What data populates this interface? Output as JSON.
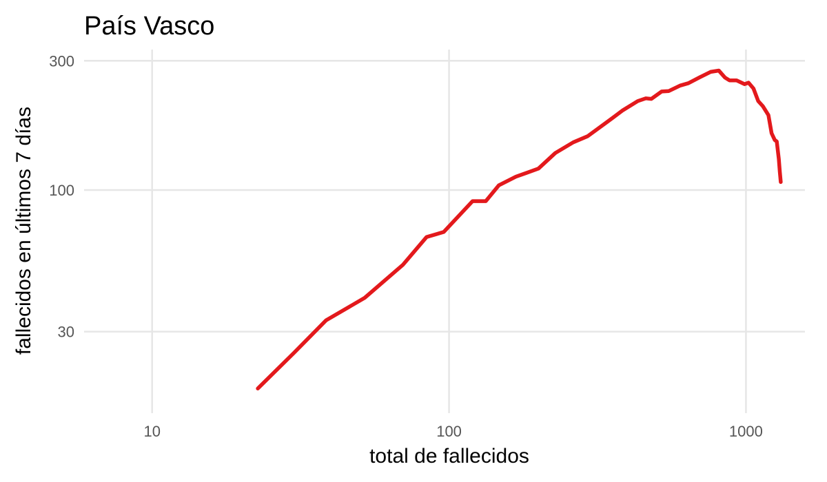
{
  "chart_data": {
    "type": "line",
    "title": "País Vasco",
    "xlabel": "total de fallecidos",
    "ylabel": "fallecidos en últimos 7 días",
    "x_scale": "log",
    "y_scale": "log",
    "xlim": [
      5.9,
      1580
    ],
    "ylim": [
      15,
      330
    ],
    "x_ticks": [
      10,
      100,
      1000
    ],
    "x_tick_labels": [
      "10",
      "100",
      "1000"
    ],
    "y_ticks": [
      30,
      100,
      300
    ],
    "y_tick_labels": [
      "30",
      "100",
      "300"
    ],
    "grid": true,
    "legend": "none",
    "line_color": "#e3191c",
    "series": [
      {
        "x": [
          22.7,
          30,
          38.5,
          52,
          70,
          84,
          96,
          120,
          133,
          147,
          168,
          200,
          228,
          262,
          293,
          340,
          385,
          432,
          460,
          480,
          520,
          550,
          600,
          640,
          700,
          760,
          810,
          850,
          880,
          930,
          990,
          1020,
          1060,
          1100,
          1140,
          1190,
          1220,
          1250,
          1270,
          1290,
          1300,
          1310
        ],
        "y": [
          18.5,
          25,
          33,
          40,
          53,
          67,
          70,
          91,
          91,
          104,
          112,
          120,
          137,
          150,
          158,
          178,
          197,
          213,
          218,
          217,
          231,
          232,
          243,
          248,
          261,
          273,
          276,
          260,
          254,
          254,
          246,
          249,
          237,
          213,
          204,
          189,
          162,
          153,
          151,
          130,
          117,
          107
        ]
      }
    ]
  }
}
